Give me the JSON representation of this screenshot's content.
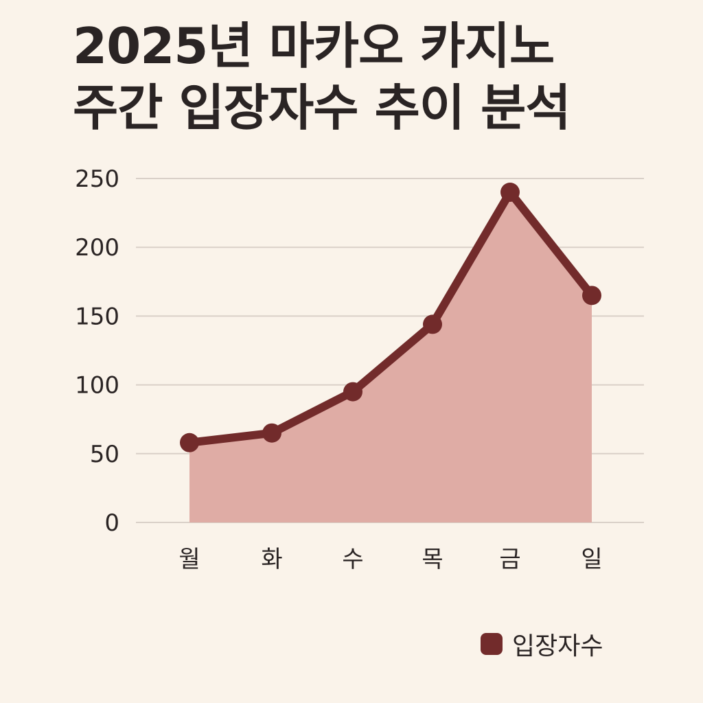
{
  "title_lines": [
    "2025년 마카오 카지노",
    "주간 입장자수 추이 분석"
  ],
  "chart_data": {
    "type": "area",
    "title": "2025년 마카오 카지노 주간 입장자수 추이 분석",
    "categories": [
      "월",
      "화",
      "수",
      "목",
      "금",
      "일"
    ],
    "series": [
      {
        "name": "입장자수",
        "values": [
          58,
          65,
          95,
          144,
          240,
          165
        ]
      }
    ],
    "ylim": [
      0,
      250
    ],
    "yticks": [
      0,
      50,
      100,
      150,
      200,
      250
    ],
    "grid": true,
    "legend_position": "bottom-right"
  },
  "colors": {
    "line": "#722b2b",
    "fill": "#dfaca5",
    "grid": "#d9d0c8",
    "background": "#faf3ea"
  }
}
